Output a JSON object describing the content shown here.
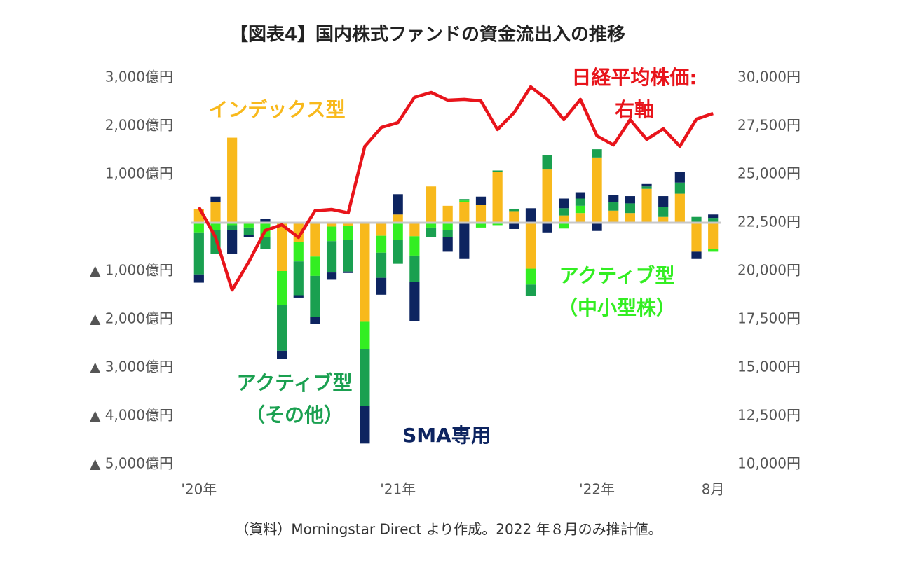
{
  "chart_data": {
    "type": "bar",
    "title": "【図表4】国内株式ファンドの資金流出入の推移",
    "note": "（資料）Morningstar Direct より作成。2022 年８月のみ推計値。",
    "categories": [
      "'20年",
      null,
      null,
      null,
      null,
      null,
      null,
      null,
      null,
      null,
      null,
      null,
      "'21年",
      null,
      null,
      null,
      null,
      null,
      null,
      null,
      null,
      null,
      null,
      null,
      "'22年",
      null,
      null,
      null,
      null,
      null,
      null,
      "8月"
    ],
    "ylim": [
      -5000,
      3000
    ],
    "yticks": [
      {
        "value": 3000,
        "label": "3,000億円"
      },
      {
        "value": 2000,
        "label": "2,000億円"
      },
      {
        "value": 1000,
        "label": "1,000億円"
      },
      {
        "value": -1000,
        "label": "▲ 1,000億円"
      },
      {
        "value": -2000,
        "label": "▲ 2,000億円"
      },
      {
        "value": -3000,
        "label": "▲ 3,000億円"
      },
      {
        "value": -4000,
        "label": "▲ 4,000億円"
      },
      {
        "value": -5000,
        "label": "▲ 5,000億円"
      }
    ],
    "y2lim": [
      10000,
      30000
    ],
    "y2ticks": [
      {
        "value": 30000,
        "label": "30,000円"
      },
      {
        "value": 27500,
        "label": "27,500円"
      },
      {
        "value": 25000,
        "label": "25,000円"
      },
      {
        "value": 22500,
        "label": "22,500円"
      },
      {
        "value": 20000,
        "label": "20,000円"
      },
      {
        "value": 17500,
        "label": "17,500円"
      },
      {
        "value": 15000,
        "label": "15,000円"
      },
      {
        "value": 12500,
        "label": "12,500円"
      },
      {
        "value": 10000,
        "label": "10,000円"
      }
    ],
    "stacked": true,
    "series": [
      {
        "name": "インデックス型",
        "color": "#f8b91c",
        "values": [
          280,
          420,
          1760,
          0,
          0,
          -1000,
          -400,
          -700,
          -80,
          -60,
          -2050,
          -270,
          170,
          -280,
          750,
          350,
          430,
          370,
          1050,
          240,
          -950,
          1100,
          150,
          200,
          1350,
          250,
          200,
          700,
          120,
          600,
          -600,
          -550
        ]
      },
      {
        "name": "アクティブ型",
        "name_sub": "（中小型株）",
        "color": "#33ee22",
        "values": [
          -200,
          -150,
          -50,
          -100,
          -300,
          -700,
          -400,
          -400,
          -300,
          -300,
          -570,
          -350,
          -350,
          -400,
          -100,
          -150,
          30,
          -100,
          -50,
          0,
          -330,
          0,
          -120,
          150,
          0,
          0,
          0,
          0,
          0,
          0,
          0,
          -50
        ]
      },
      {
        "name": "アクティブ型",
        "name_sub": "（その他）",
        "color": "#1aa050",
        "values": [
          -870,
          -500,
          -100,
          -150,
          -250,
          -950,
          -700,
          -850,
          -650,
          -650,
          -1170,
          -520,
          -500,
          -550,
          -200,
          -150,
          30,
          0,
          30,
          50,
          -230,
          300,
          150,
          150,
          170,
          170,
          200,
          50,
          200,
          230,
          120,
          100
        ]
      },
      {
        "name": "SMA専用",
        "color": "#0d2460",
        "values": [
          -170,
          120,
          -500,
          -50,
          80,
          -170,
          -50,
          -150,
          -150,
          -30,
          -780,
          -350,
          420,
          -800,
          0,
          -300,
          -750,
          170,
          0,
          -130,
          300,
          -200,
          200,
          130,
          -170,
          150,
          150,
          50,
          230,
          220,
          -150,
          70
        ]
      },
      {
        "name": "日経平均株価:",
        "name_sub": "右軸",
        "type": "line",
        "axis": "y2",
        "color": "#e8141b",
        "values": [
          23300,
          21740,
          19020,
          20470,
          22100,
          22390,
          21740,
          23120,
          23190,
          23010,
          26450,
          27430,
          27680,
          28990,
          29240,
          28840,
          28880,
          28800,
          27320,
          28190,
          29530,
          28880,
          27830,
          28880,
          26990,
          26520,
          27830,
          26810,
          27360,
          26450,
          27860,
          28150
        ]
      }
    ]
  }
}
